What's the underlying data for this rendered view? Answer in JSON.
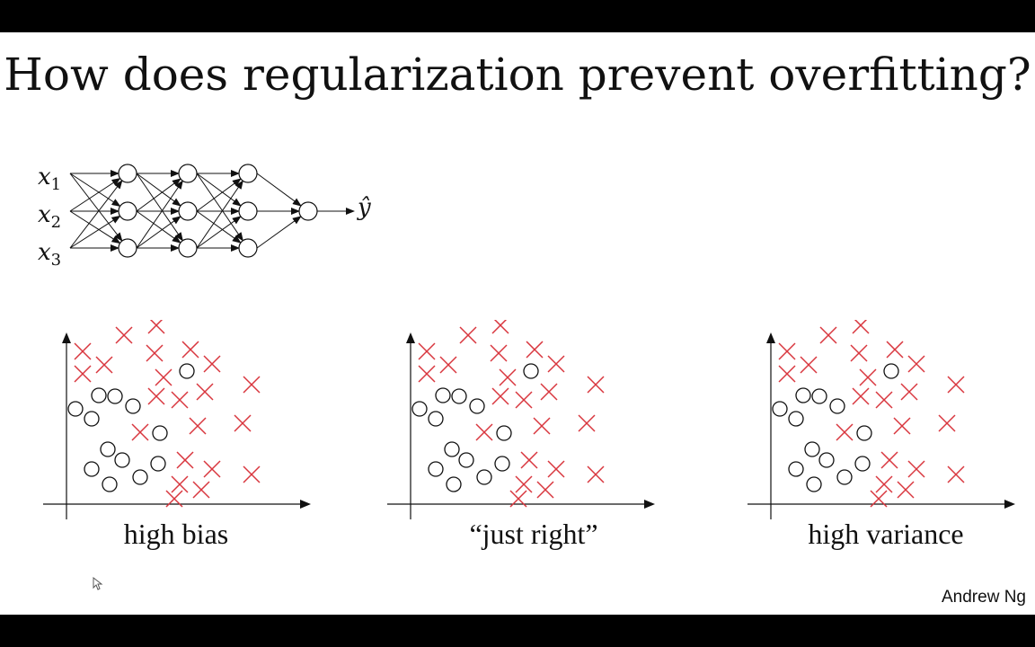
{
  "slide": {
    "title": "How does regularization prevent overfitting?",
    "credit": "Andrew Ng"
  },
  "network": {
    "inputs": [
      {
        "var": "x",
        "sub": "1"
      },
      {
        "var": "x",
        "sub": "2"
      },
      {
        "var": "x",
        "sub": "3"
      }
    ],
    "hidden_layers": 3,
    "units_per_layer": 3,
    "output_units": 1,
    "output_label": "ŷ"
  },
  "plots": [
    {
      "label": "high bias"
    },
    {
      "label": "“just right”"
    },
    {
      "label": "high variance"
    }
  ],
  "data_points": {
    "cross_color": "#d9363e",
    "circle_color": "#111111",
    "circles": [
      [
        110,
        440
      ],
      [
        84,
        455
      ],
      [
        128,
        441
      ],
      [
        148,
        452
      ],
      [
        102,
        466
      ],
      [
        208,
        413
      ],
      [
        178,
        482
      ],
      [
        120,
        500
      ],
      [
        136,
        512
      ],
      [
        102,
        522
      ],
      [
        156,
        531
      ],
      [
        122,
        539
      ],
      [
        176,
        516
      ]
    ],
    "crosses": [
      [
        92,
        391
      ],
      [
        138,
        373
      ],
      [
        174,
        362
      ],
      [
        172,
        393
      ],
      [
        212,
        389
      ],
      [
        92,
        416
      ],
      [
        116,
        406
      ],
      [
        182,
        420
      ],
      [
        236,
        405
      ],
      [
        174,
        441
      ],
      [
        200,
        445
      ],
      [
        228,
        436
      ],
      [
        280,
        428
      ],
      [
        156,
        481
      ],
      [
        220,
        474
      ],
      [
        270,
        471
      ],
      [
        206,
        512
      ],
      [
        236,
        522
      ],
      [
        280,
        528
      ],
      [
        200,
        539
      ],
      [
        224,
        545
      ],
      [
        194,
        555
      ]
    ]
  }
}
